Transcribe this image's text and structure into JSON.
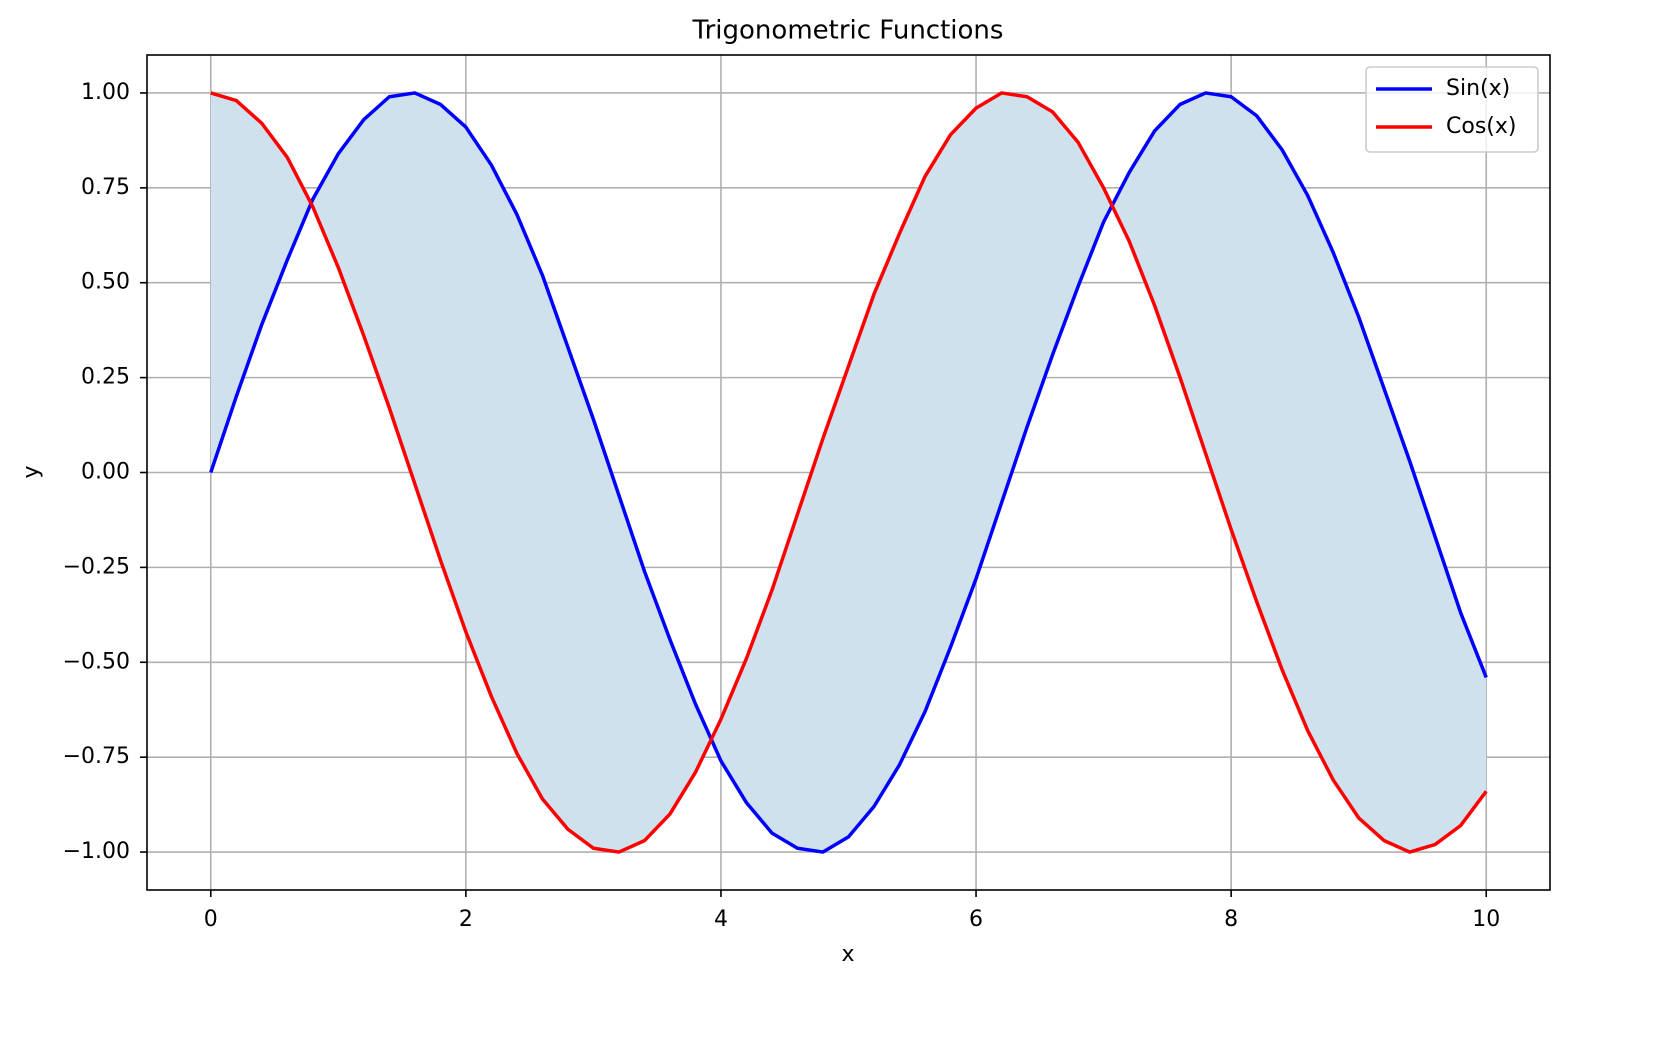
{
  "chart_data": {
    "type": "line",
    "title": "Trigonometric Functions",
    "x_label": "x",
    "y_label": "y",
    "x": [
      0,
      0.2,
      0.4,
      0.6,
      0.8,
      1.0,
      1.2,
      1.4,
      1.6,
      1.8,
      2.0,
      2.2,
      2.4,
      2.6,
      2.8,
      3.0,
      3.2,
      3.4,
      3.6,
      3.8,
      4.0,
      4.2,
      4.4,
      4.6,
      4.8,
      5.0,
      5.2,
      5.4,
      5.6,
      5.8,
      6.0,
      6.2,
      6.4,
      6.6,
      6.8,
      7.0,
      7.2,
      7.4,
      7.6,
      7.8,
      8.0,
      8.2,
      8.4,
      8.6,
      8.8,
      9.0,
      9.2,
      9.4,
      9.6,
      9.8,
      10.0
    ],
    "series": [
      {
        "name": "Sin(x)",
        "color": "#0000ff",
        "values": [
          0,
          0.2,
          0.39,
          0.56,
          0.72,
          0.84,
          0.93,
          0.99,
          1.0,
          0.97,
          0.91,
          0.81,
          0.68,
          0.52,
          0.33,
          0.14,
          -0.06,
          -0.26,
          -0.44,
          -0.61,
          -0.76,
          -0.87,
          -0.95,
          -0.99,
          -1.0,
          -0.96,
          -0.88,
          -0.77,
          -0.63,
          -0.46,
          -0.28,
          -0.08,
          0.12,
          0.31,
          0.49,
          0.66,
          0.79,
          0.9,
          0.97,
          1.0,
          0.99,
          0.94,
          0.85,
          0.73,
          0.58,
          0.41,
          0.22,
          0.03,
          -0.17,
          -0.37,
          -0.54
        ]
      },
      {
        "name": "Cos(x)",
        "color": "#ff0000",
        "values": [
          1,
          0.98,
          0.92,
          0.83,
          0.7,
          0.54,
          0.36,
          0.17,
          -0.03,
          -0.23,
          -0.42,
          -0.59,
          -0.74,
          -0.86,
          -0.94,
          -0.99,
          -1.0,
          -0.97,
          -0.9,
          -0.79,
          -0.65,
          -0.49,
          -0.31,
          -0.11,
          0.09,
          0.28,
          0.47,
          0.63,
          0.78,
          0.89,
          0.96,
          1.0,
          0.99,
          0.95,
          0.87,
          0.75,
          0.61,
          0.44,
          0.25,
          0.05,
          -0.15,
          -0.34,
          -0.52,
          -0.68,
          -0.81,
          -0.91,
          -0.97,
          -1.0,
          -0.98,
          -0.93,
          -0.84
        ]
      }
    ],
    "fill_between_color": "#d0e1ee",
    "xlim": [
      -0.5,
      10.5
    ],
    "xticks": [
      0,
      2,
      4,
      6,
      8,
      10
    ],
    "ylim": [
      -1.1,
      1.1
    ],
    "yticks": [
      {
        "value": -1,
        "label": "−1.00"
      },
      {
        "value": -0.75,
        "label": "−0.75"
      },
      {
        "value": -0.5,
        "label": "−0.50"
      },
      {
        "value": -0.25,
        "label": "−0.25"
      },
      {
        "value": 0,
        "label": "0.00"
      },
      {
        "value": 0.25,
        "label": "0.25"
      },
      {
        "value": 0.5,
        "label": "0.50"
      },
      {
        "value": 0.75,
        "label": "0.75"
      },
      {
        "value": 1,
        "label": "1.00"
      }
    ],
    "grid": true,
    "legend_position": "upper-right"
  }
}
